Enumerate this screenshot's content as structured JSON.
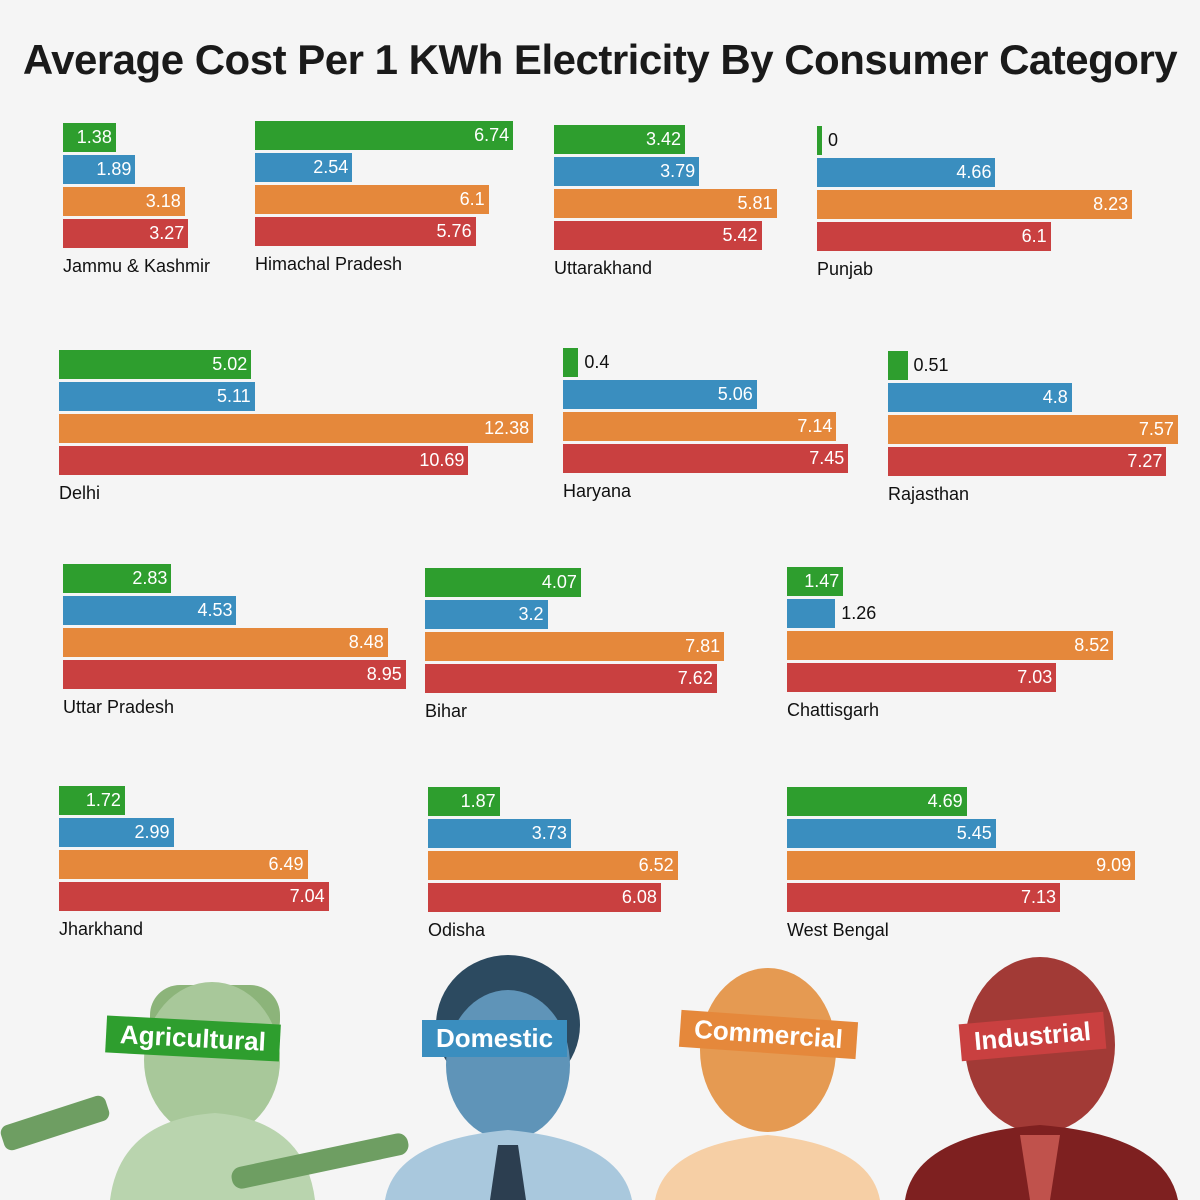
{
  "title": "Average Cost Per 1 KWh Electricity By Consumer Category",
  "colors": {
    "agricultural": "#2e9e2e",
    "domestic": "#3a8ebf",
    "commercial": "#e5883b",
    "industrial": "#c94040",
    "background": "#f5f5f5"
  },
  "categories": [
    {
      "key": "agricultural",
      "label": "Agricultural"
    },
    {
      "key": "domestic",
      "label": "Domestic"
    },
    {
      "key": "commercial",
      "label": "Commercial"
    },
    {
      "key": "industrial",
      "label": "Industrial"
    }
  ],
  "chart_data": {
    "type": "bar",
    "title": "Average Cost Per 1 KWh Electricity By Consumer Category",
    "orientation": "horizontal",
    "series_names": [
      "Agricultural",
      "Domestic",
      "Commercial",
      "Industrial"
    ],
    "states": [
      {
        "name": "Jammu & Kashmir",
        "values": [
          1.38,
          1.89,
          3.18,
          3.27
        ]
      },
      {
        "name": "Himachal Pradesh",
        "values": [
          6.74,
          2.54,
          6.1,
          5.76
        ]
      },
      {
        "name": "Uttarakhand",
        "values": [
          3.42,
          3.79,
          5.81,
          5.42
        ]
      },
      {
        "name": "Punjab",
        "values": [
          0,
          4.66,
          8.23,
          6.1
        ]
      },
      {
        "name": "Delhi",
        "values": [
          5.02,
          5.11,
          12.38,
          10.69
        ]
      },
      {
        "name": "Haryana",
        "values": [
          0.4,
          5.06,
          7.14,
          7.45
        ]
      },
      {
        "name": "Rajasthan",
        "values": [
          0.51,
          4.8,
          7.57,
          7.27
        ]
      },
      {
        "name": "Uttar Pradesh",
        "values": [
          2.83,
          4.53,
          8.48,
          8.95
        ]
      },
      {
        "name": "Bihar",
        "values": [
          4.07,
          3.2,
          7.81,
          7.62
        ]
      },
      {
        "name": "Chattisgarh",
        "values": [
          1.47,
          1.26,
          8.52,
          7.03
        ]
      },
      {
        "name": "Jharkhand",
        "values": [
          1.72,
          2.99,
          6.49,
          7.04
        ]
      },
      {
        "name": "Odisha",
        "values": [
          1.87,
          3.73,
          6.52,
          6.08
        ]
      },
      {
        "name": "West Bengal",
        "values": [
          4.69,
          5.45,
          9.09,
          7.13
        ]
      }
    ]
  }
}
